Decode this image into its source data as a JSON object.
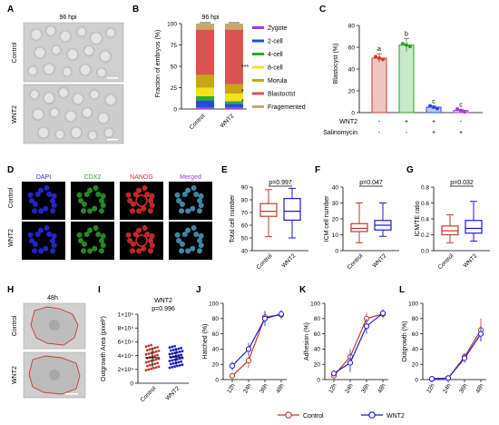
{
  "figure": {
    "panel_letters": [
      "A",
      "B",
      "C",
      "D",
      "E",
      "F",
      "G",
      "H",
      "I",
      "J",
      "K",
      "L"
    ],
    "colors": {
      "control": "#c0392b",
      "wnt2": "#1a1ad6",
      "green": "#2e9e2e",
      "purple": "#a040d0",
      "blue": "#1f4fd6",
      "axis": "#000000"
    }
  },
  "panel_a": {
    "title": "96 hpi",
    "row_labels": [
      "Control",
      "WNT2"
    ]
  },
  "panel_b": {
    "title": "96 hpi",
    "ylabel": "Fraction of embryos (%)",
    "yticks": [
      "100",
      "75",
      "50",
      "25",
      "0"
    ],
    "xticks": [
      "Control",
      "WNT2"
    ],
    "annotations": [
      "***",
      "*",
      "*"
    ],
    "legend": [
      {
        "name": "Zygote",
        "color": "#a040d0"
      },
      {
        "name": "2-cell",
        "color": "#1f4fd6"
      },
      {
        "name": "4-cell",
        "color": "#2eaa2e"
      },
      {
        "name": "8-cell",
        "color": "#f2e11f"
      },
      {
        "name": "Morula",
        "color": "#c8a419"
      },
      {
        "name": "Blastoctst",
        "color": "#d9534f"
      },
      {
        "name": "Fragemented",
        "color": "#c8a86a"
      }
    ]
  },
  "panel_c": {
    "ylabel": "Blastocyst (%)",
    "yticks": [
      "80",
      "60",
      "40",
      "20",
      "0"
    ],
    "row_labels": [
      "WNT2",
      "Salinomycin"
    ],
    "signs": [
      [
        "-",
        "+",
        "+",
        "-"
      ],
      [
        "-",
        "-",
        "+",
        "+"
      ]
    ],
    "letters": [
      "a",
      "b",
      "c",
      "c"
    ]
  },
  "panel_d": {
    "stains": [
      {
        "name": "DAPI",
        "color": "#2a2af0"
      },
      {
        "name": "CDX2",
        "color": "#2ca02c"
      },
      {
        "name": "NANOG",
        "color": "#e03030"
      },
      {
        "name": "Merged",
        "color": "#9a40c8"
      }
    ],
    "row_labels": [
      "Control",
      "WNT2"
    ]
  },
  "panel_e": {
    "ylabel": "Total cell number",
    "yticks": [
      "90",
      "80",
      "70",
      "60",
      "50",
      "40"
    ],
    "xticks": [
      "Control",
      "WNT2"
    ],
    "pvalue": "p=0.997"
  },
  "panel_f": {
    "ylabel": "ICM cell number",
    "yticks": [
      "40",
      "30",
      "20",
      "10",
      "0"
    ],
    "xticks": [
      "Control",
      "WNT2"
    ],
    "pvalue": "p=0.047"
  },
  "panel_g": {
    "ylabel": "ICM/TE ratio",
    "yticks": [
      "0.8",
      "0.6",
      "0.4",
      "0.2",
      "0.0"
    ],
    "xticks": [
      "Control",
      "WNT2"
    ],
    "pvalue": "p=0.032"
  },
  "panel_h": {
    "title": "48h",
    "row_labels": [
      "Control",
      "WNT2"
    ]
  },
  "panel_i": {
    "ylabel": "Outgrowth Area (pixel²)",
    "yticks": [
      "1×10⁵",
      "8×10⁴",
      "6×10⁴",
      "4×10⁴",
      "2×10⁴",
      "0"
    ],
    "xticks": [
      "Control",
      "WNT2"
    ],
    "title": "WNT2",
    "pvalue": "p=0.996"
  },
  "panel_j": {
    "ylabel": "Hatched (%)",
    "yticks": [
      "100",
      "80",
      "60",
      "40",
      "20",
      "0"
    ],
    "xticks": [
      "12h",
      "24h",
      "36h",
      "48h"
    ]
  },
  "panel_k": {
    "ylabel": "Adhesion (%)",
    "yticks": [
      "100",
      "80",
      "60",
      "40",
      "20",
      "0"
    ],
    "xticks": [
      "12h",
      "24h",
      "36h",
      "48h"
    ]
  },
  "panel_l": {
    "ylabel": "Outgrowth (%)",
    "yticks": [
      "100",
      "80",
      "60",
      "40",
      "20",
      "0"
    ],
    "xticks": [
      "12h",
      "24h",
      "36h",
      "48h"
    ]
  },
  "legend_bottom": {
    "control": "Control",
    "wnt2": "WNT2"
  },
  "chart_data": [
    {
      "type": "bar",
      "panel": "B",
      "categories": [
        "Control",
        "WNT2"
      ],
      "stacked": true,
      "ylim": [
        0,
        100
      ],
      "series": [
        {
          "name": "Zygote",
          "values": [
            2,
            2
          ]
        },
        {
          "name": "2-cell",
          "values": [
            8,
            4
          ]
        },
        {
          "name": "4-cell",
          "values": [
            5,
            3
          ]
        },
        {
          "name": "8-cell",
          "values": [
            10,
            9
          ]
        },
        {
          "name": "Morula",
          "values": [
            15,
            11
          ]
        },
        {
          "name": "Blastoctst",
          "values": [
            53,
            64
          ]
        },
        {
          "name": "Fragemented",
          "values": [
            7,
            7
          ]
        }
      ]
    },
    {
      "type": "bar",
      "panel": "C",
      "categories": [
        "1",
        "2",
        "3",
        "4"
      ],
      "values": [
        50,
        62,
        5,
        2
      ],
      "errors": [
        4,
        6,
        1,
        1
      ],
      "ylim": [
        0,
        80
      ]
    },
    {
      "type": "box",
      "panel": "E",
      "categories": [
        "Control",
        "WNT2"
      ],
      "ylim": [
        40,
        90
      ],
      "boxes": [
        {
          "min": 51,
          "q1": 67,
          "median": 71,
          "q3": 77,
          "max": 88
        },
        {
          "min": 50,
          "q1": 64,
          "median": 71,
          "q3": 81,
          "max": 89
        }
      ]
    },
    {
      "type": "box",
      "panel": "F",
      "categories": [
        "Control",
        "WNT2"
      ],
      "ylim": [
        0,
        40
      ],
      "boxes": [
        {
          "min": 5,
          "q1": 12,
          "median": 14,
          "q3": 17,
          "max": 30
        },
        {
          "min": 9,
          "q1": 13,
          "median": 16,
          "q3": 19,
          "max": 30
        }
      ]
    },
    {
      "type": "box",
      "panel": "G",
      "categories": [
        "Control",
        "WNT2"
      ],
      "ylim": [
        0,
        0.8
      ],
      "boxes": [
        {
          "min": 0.1,
          "q1": 0.2,
          "median": 0.25,
          "q3": 0.31,
          "max": 0.45
        },
        {
          "min": 0.12,
          "q1": 0.22,
          "median": 0.28,
          "q3": 0.38,
          "max": 0.62
        }
      ]
    },
    {
      "type": "scatter",
      "panel": "I",
      "categories": [
        "Control",
        "WNT2"
      ],
      "ylim": [
        0,
        100000
      ],
      "groups": [
        {
          "mean": 37000,
          "sd": 14000
        },
        {
          "mean": 38000,
          "sd": 12000
        }
      ]
    },
    {
      "type": "line",
      "panel": "J",
      "x": [
        "12h",
        "24h",
        "36h",
        "48h"
      ],
      "ylim": [
        0,
        100
      ],
      "series": [
        {
          "name": "Control",
          "values": [
            5,
            25,
            82,
            85
          ],
          "errors": [
            3,
            10,
            8,
            6
          ]
        },
        {
          "name": "WNT2",
          "values": [
            18,
            40,
            80,
            86
          ],
          "errors": [
            6,
            8,
            10,
            5
          ]
        }
      ]
    },
    {
      "type": "line",
      "panel": "K",
      "x": [
        "12h",
        "24h",
        "36h",
        "48h"
      ],
      "ylim": [
        0,
        100
      ],
      "series": [
        {
          "name": "Control",
          "values": [
            5,
            30,
            80,
            86
          ],
          "errors": [
            3,
            10,
            8,
            6
          ]
        },
        {
          "name": "WNT2",
          "values": [
            8,
            22,
            70,
            87
          ],
          "errors": [
            4,
            12,
            10,
            5
          ]
        }
      ]
    },
    {
      "type": "line",
      "panel": "L",
      "x": [
        "12h",
        "24h",
        "36h",
        "48h"
      ],
      "ylim": [
        0,
        100
      ],
      "series": [
        {
          "name": "Control",
          "values": [
            1,
            2,
            30,
            65
          ],
          "errors": [
            1,
            1,
            5,
            15
          ]
        },
        {
          "name": "WNT2",
          "values": [
            1,
            2,
            28,
            60
          ],
          "errors": [
            1,
            1,
            6,
            10
          ]
        }
      ]
    }
  ]
}
